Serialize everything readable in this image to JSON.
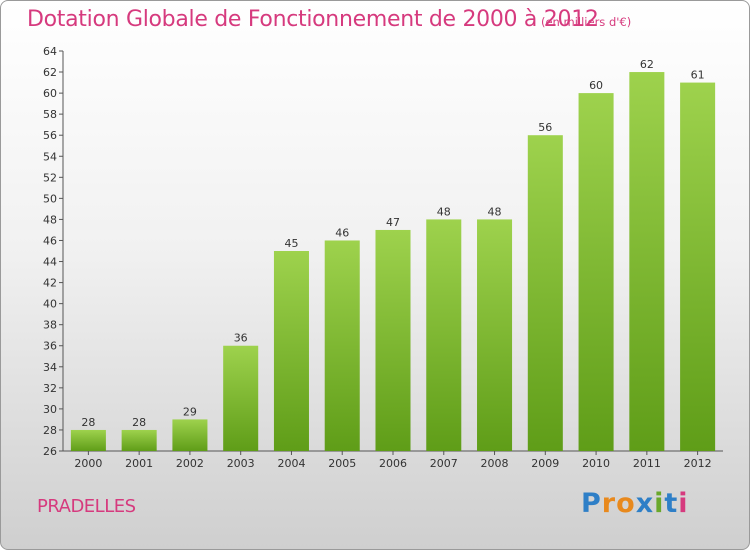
{
  "chart_data": {
    "type": "bar",
    "title": "Dotation Globale de Fonctionnement de 2000 à 2012",
    "subtitle": "(en milliers d'€)",
    "categories": [
      "2000",
      "2001",
      "2002",
      "2003",
      "2004",
      "2005",
      "2006",
      "2007",
      "2008",
      "2009",
      "2010",
      "2011",
      "2012"
    ],
    "values": [
      28,
      28,
      29,
      36,
      45,
      46,
      47,
      48,
      48,
      56,
      60,
      62,
      61
    ],
    "ylim": [
      26,
      64
    ],
    "yticks": [
      26,
      28,
      30,
      32,
      34,
      36,
      38,
      40,
      42,
      44,
      46,
      48,
      50,
      52,
      54,
      56,
      58,
      60,
      62,
      64
    ],
    "xlabel": "",
    "ylabel": "",
    "grid": false,
    "bar_color": "#7ab82a"
  },
  "commune": "PRADELLES",
  "brand": {
    "letters": [
      "P",
      "r",
      "o",
      "x",
      "i",
      "t",
      "i"
    ],
    "colors": [
      "#2e7fc7",
      "#e8891d",
      "#e8891d",
      "#2e7fc7",
      "#6aa82b",
      "#2e7fc7",
      "#d63a7e"
    ]
  }
}
